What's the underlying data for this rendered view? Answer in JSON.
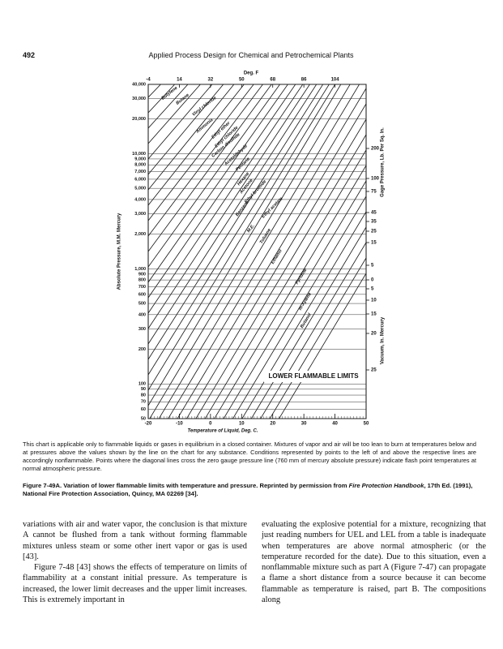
{
  "header": {
    "page_number": "492",
    "title": "Applied Process Design for Chemical and Petrochemical Plants"
  },
  "figure": {
    "top_axis_title": "Deg. F",
    "top_ticks": [
      "-4",
      "14",
      "32",
      "50",
      "68",
      "86",
      "104"
    ],
    "left_axis_title": "Absolute Pressure, M.M. Mercury",
    "left_ticks": [
      "40,000",
      "30,000",
      "20,000",
      "10,000",
      "9,000",
      "8,000",
      "7,000",
      "6,000",
      "5,000",
      "4,000",
      "3,000",
      "2,000",
      "1,000",
      "900",
      "800",
      "700",
      "600",
      "500",
      "400",
      "300",
      "200",
      "100",
      "90",
      "80",
      "70",
      "60",
      "50"
    ],
    "right_gauge_title": "Gage Pressure, Lb. Per Sq. In.",
    "right_gauge_ticks": [
      "200",
      "100",
      "75",
      "45",
      "35",
      "25",
      "15",
      "5",
      "0"
    ],
    "right_vacuum_title": "Vacuum, In. Mercury",
    "right_vacuum_ticks": [
      "5",
      "10",
      "15",
      "20",
      "25"
    ],
    "bottom_axis_title": "Temperature of Liquid, Deg. C.",
    "bottom_ticks": [
      "-20",
      "-10",
      "0",
      "10",
      "20",
      "30",
      "40",
      "50"
    ],
    "line_labels": [
      "Butylene",
      "Butane",
      "Vinyl chloride",
      "Ammonia",
      "Ethyl ether",
      "Ethyl chloride",
      "Carbon disulfide",
      "Acetaldehyde",
      "Pentane",
      "Hexane",
      "Acetone",
      "Ethyl bromide",
      "Benzene",
      "M.E.",
      "Ethyl acetate",
      "Toluene",
      "Ethanol",
      "Pyridine",
      "m-Xylene",
      "Butanol"
    ],
    "annotation": "LOWER FLAMMABLE LIMITS"
  },
  "note": "This chart is applicable only to flammable liquids or gases in equilibrium in a closed container. Mixtures of vapor and air will be too lean to burn at temperatures below and at pressures above the values shown by the line on the chart for any substance. Conditions represented by points to the left of and above the respective lines are accordingly nonflammable. Points where the diagonal lines cross the zero gauge pressure line (760 mm of mercury absolute pressure) indicate flash point temperatures at normal atmospheric pressure.",
  "caption": {
    "label": "Figure 7-49A.",
    "text": "Variation of lower flammable limits with temperature and pressure. Reprinted by permission from",
    "source_title": "Fire Protection Handbook",
    "source_rest": ", 17th Ed. (1991), National Fire Protection Association, Quincy, MA 02269 [34]."
  },
  "body": {
    "left": [
      "variations with air and water vapor, the conclusion is that mixture A cannot be flushed from a tank without forming flammable mixtures unless steam or some other inert vapor or gas is used [43].",
      "Figure 7-48 [43] shows the effects of temperature on limits of flammability at a constant initial pressure. As temperature is increased, the lower limit decreases and the upper limit increases. This is extremely important in"
    ],
    "right": [
      "evaluating the explosive potential for a mixture, recognizing that just reading numbers for UEL and LEL from a table is inadequate when temperatures are above normal atmospheric (or the temperature recorded for the date). Due to this situation, even a nonflammable mixture such as part A (Figure 7-47) can propagate a flame a short distance from a source because it can become flammable as temperature is raised, part B. The compositions along"
    ]
  }
}
